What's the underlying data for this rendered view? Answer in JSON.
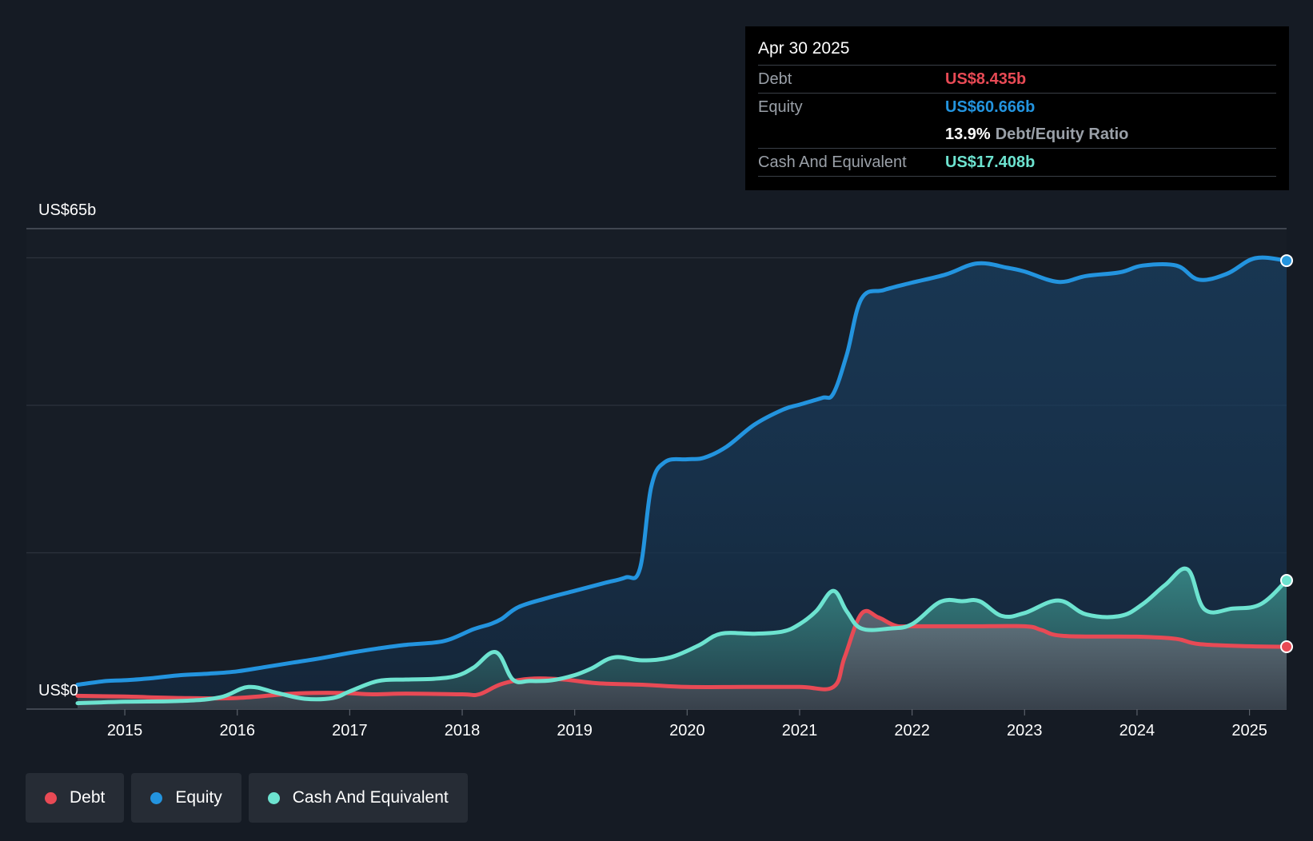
{
  "tooltip": {
    "date": "Apr 30 2025",
    "debt_label": "Debt",
    "debt_value": "US$8.435b",
    "equity_label": "Equity",
    "equity_value": "US$60.666b",
    "ratio_value": "13.9%",
    "ratio_label": "Debt/Equity Ratio",
    "cash_label": "Cash And Equivalent",
    "cash_value": "US$17.408b"
  },
  "legend": {
    "debt": "Debt",
    "equity": "Equity",
    "cash": "Cash And Equivalent"
  },
  "colors": {
    "debt": "#e84a55",
    "equity": "#2394df",
    "cash": "#6de3d0",
    "background": "#151b24"
  },
  "chart_data": {
    "type": "area",
    "title": "",
    "ylabel_top": "US$65b",
    "ylabel_bottom": "US$0",
    "ylim": [
      0,
      65
    ],
    "xlim": [
      2014.58,
      2025.33
    ],
    "x_ticks": [
      2015,
      2016,
      2017,
      2018,
      2019,
      2020,
      2021,
      2022,
      2023,
      2024,
      2025
    ],
    "x_tick_labels": [
      "2015",
      "2016",
      "2017",
      "2018",
      "2019",
      "2020",
      "2021",
      "2022",
      "2023",
      "2024",
      "2025"
    ],
    "series": [
      {
        "name": "Equity",
        "x": [
          2014.58,
          2014.83,
          2015.0,
          2015.25,
          2015.5,
          2015.75,
          2016.0,
          2016.25,
          2016.5,
          2016.75,
          2017.0,
          2017.25,
          2017.5,
          2017.75,
          2017.9,
          2018.1,
          2018.25,
          2018.35,
          2018.5,
          2018.75,
          2019.0,
          2019.25,
          2019.45,
          2019.58,
          2019.68,
          2019.8,
          2020.0,
          2020.15,
          2020.35,
          2020.6,
          2020.85,
          2021.0,
          2021.2,
          2021.3,
          2021.42,
          2021.55,
          2021.75,
          2022.0,
          2022.3,
          2022.58,
          2022.85,
          2023.0,
          2023.3,
          2023.55,
          2023.85,
          2024.05,
          2024.35,
          2024.55,
          2024.8,
          2025.05,
          2025.33
        ],
        "values": [
          3.3,
          3.8,
          3.9,
          4.2,
          4.6,
          4.8,
          5.1,
          5.7,
          6.3,
          6.9,
          7.6,
          8.2,
          8.7,
          9.0,
          9.5,
          10.8,
          11.5,
          12.2,
          13.8,
          15.0,
          16.0,
          17.0,
          17.8,
          19.0,
          30.0,
          33.4,
          33.8,
          34.0,
          35.5,
          38.5,
          40.5,
          41.2,
          42.1,
          42.7,
          48.0,
          55.5,
          56.7,
          57.7,
          58.8,
          60.3,
          59.7,
          59.2,
          57.8,
          58.6,
          59.1,
          60.0,
          60.0,
          58.1,
          58.9,
          61.0,
          60.666
        ]
      },
      {
        "name": "Debt",
        "x": [
          2014.58,
          2015.0,
          2015.5,
          2016.0,
          2016.5,
          2016.9,
          2017.2,
          2017.5,
          2018.0,
          2018.15,
          2018.35,
          2018.6,
          2018.9,
          2019.2,
          2019.6,
          2020.0,
          2020.5,
          2021.0,
          2021.3,
          2021.4,
          2021.55,
          2021.7,
          2021.85,
          2022.0,
          2022.5,
          2023.0,
          2023.15,
          2023.35,
          2024.0,
          2024.35,
          2024.55,
          2025.0,
          2025.33
        ],
        "values": [
          1.8,
          1.7,
          1.5,
          1.5,
          2.1,
          2.2,
          2.0,
          2.1,
          2.0,
          2.0,
          3.4,
          4.1,
          4.0,
          3.5,
          3.3,
          3.0,
          3.0,
          3.0,
          3.0,
          7.0,
          12.9,
          12.4,
          11.3,
          11.2,
          11.2,
          11.2,
          10.7,
          9.9,
          9.8,
          9.5,
          8.8,
          8.5,
          8.435
        ]
      },
      {
        "name": "Cash And Equivalent",
        "x": [
          2014.58,
          2015.0,
          2015.5,
          2015.85,
          2016.1,
          2016.35,
          2016.6,
          2016.85,
          2017.0,
          2017.25,
          2017.5,
          2017.75,
          2017.95,
          2018.1,
          2018.3,
          2018.45,
          2018.6,
          2018.8,
          2019.0,
          2019.15,
          2019.35,
          2019.6,
          2019.85,
          2020.1,
          2020.3,
          2020.6,
          2020.85,
          2021.0,
          2021.15,
          2021.3,
          2021.42,
          2021.55,
          2021.8,
          2022.0,
          2022.25,
          2022.45,
          2022.6,
          2022.8,
          2023.0,
          2023.3,
          2023.55,
          2023.85,
          2024.05,
          2024.25,
          2024.45,
          2024.6,
          2024.85,
          2025.1,
          2025.33
        ],
        "values": [
          0.8,
          1.0,
          1.1,
          1.6,
          3.0,
          2.2,
          1.4,
          1.5,
          2.4,
          3.8,
          4.0,
          4.1,
          4.5,
          5.6,
          7.7,
          4.0,
          3.8,
          3.9,
          4.6,
          5.5,
          7.0,
          6.6,
          7.0,
          8.6,
          10.2,
          10.2,
          10.5,
          11.5,
          13.3,
          16.0,
          13.2,
          10.9,
          10.9,
          11.5,
          14.5,
          14.6,
          14.6,
          12.6,
          13.0,
          14.7,
          12.8,
          12.6,
          14.2,
          16.8,
          18.9,
          13.5,
          13.6,
          14.2,
          17.408
        ]
      }
    ]
  }
}
